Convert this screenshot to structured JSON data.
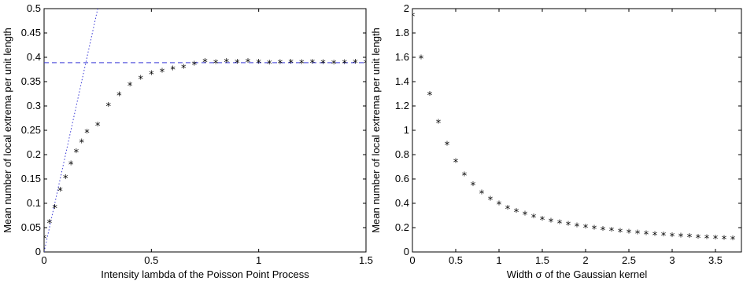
{
  "chart_data": [
    {
      "type": "scatter",
      "xlabel": "Intensity lambda of the Poisson Point Process",
      "ylabel": "Mean number of local extrema per unit length",
      "xlim": [
        0,
        1.5
      ],
      "ylim": [
        0,
        0.5
      ],
      "xticks": [
        "0",
        "0.5",
        "1",
        "1.5"
      ],
      "xtick_values": [
        0,
        0.5,
        1,
        1.5
      ],
      "yticks": [
        "0",
        "0.05",
        "0.1",
        "0.15",
        "0.2",
        "0.25",
        "0.3",
        "0.35",
        "0.4",
        "0.45",
        "0.5"
      ],
      "ytick_values": [
        0,
        0.05,
        0.1,
        0.15,
        0.2,
        0.25,
        0.3,
        0.35,
        0.4,
        0.45,
        0.5
      ],
      "marker": "*",
      "marker_color": "#000000",
      "points": {
        "x": [
          0,
          0.025,
          0.05,
          0.075,
          0.1,
          0.125,
          0.15,
          0.175,
          0.2,
          0.25,
          0.3,
          0.35,
          0.4,
          0.45,
          0.5,
          0.55,
          0.6,
          0.65,
          0.7,
          0.75,
          0.8,
          0.85,
          0.9,
          0.95,
          1.0,
          1.05,
          1.1,
          1.15,
          1.2,
          1.25,
          1.3,
          1.35,
          1.4,
          1.45,
          1.5
        ],
        "y": [
          0.028,
          0.06,
          0.09,
          0.126,
          0.152,
          0.18,
          0.205,
          0.225,
          0.245,
          0.26,
          0.3,
          0.322,
          0.342,
          0.356,
          0.365,
          0.37,
          0.375,
          0.378,
          0.385,
          0.39,
          0.388,
          0.39,
          0.389,
          0.39,
          0.389,
          0.387,
          0.388,
          0.389,
          0.388,
          0.389,
          0.388,
          0.387,
          0.388,
          0.389,
          0.388
        ]
      },
      "reference_lines": [
        {
          "style": "dashed",
          "color": "#3b3bd6",
          "x": [
            0,
            1.5
          ],
          "y": [
            0.389,
            0.389
          ]
        },
        {
          "style": "dotted",
          "color": "#3b3bd6",
          "x": [
            0,
            0.25
          ],
          "y": [
            0,
            0.5
          ]
        }
      ]
    },
    {
      "type": "scatter",
      "xlabel": "Width σ of the Gaussian kernel",
      "ylabel": "Mean number of local extrema per unit length",
      "xlim": [
        0,
        3.8
      ],
      "ylim": [
        0,
        2
      ],
      "xticks": [
        "0",
        "0.5",
        "1",
        "1.5",
        "2",
        "2.5",
        "3",
        "3.5"
      ],
      "xtick_values": [
        0,
        0.5,
        1,
        1.5,
        2,
        2.5,
        3,
        3.5
      ],
      "yticks": [
        "0",
        "0.2",
        "0.4",
        "0.6",
        "0.8",
        "1",
        "1.2",
        "1.4",
        "1.6",
        "1.8",
        "2"
      ],
      "ytick_values": [
        0,
        0.2,
        0.4,
        0.6,
        0.8,
        1.0,
        1.2,
        1.4,
        1.6,
        1.8,
        2.0
      ],
      "marker": "*",
      "marker_color": "#000000",
      "points": {
        "x": [
          0.0,
          0.1,
          0.2,
          0.3,
          0.4,
          0.5,
          0.6,
          0.7,
          0.8,
          0.9,
          1.0,
          1.1,
          1.2,
          1.3,
          1.4,
          1.5,
          1.6,
          1.7,
          1.8,
          1.9,
          2.0,
          2.1,
          2.2,
          2.3,
          2.4,
          2.5,
          2.6,
          2.7,
          2.8,
          2.9,
          3.0,
          3.1,
          3.2,
          3.3,
          3.4,
          3.5,
          3.6,
          3.7
        ],
        "y": [
          1.94,
          1.59,
          1.29,
          1.06,
          0.88,
          0.74,
          0.63,
          0.55,
          0.48,
          0.43,
          0.39,
          0.355,
          0.33,
          0.305,
          0.285,
          0.265,
          0.248,
          0.235,
          0.222,
          0.21,
          0.2,
          0.19,
          0.182,
          0.174,
          0.166,
          0.159,
          0.152,
          0.146,
          0.14,
          0.135,
          0.13,
          0.125,
          0.121,
          0.117,
          0.113,
          0.109,
          0.106,
          0.103
        ]
      }
    }
  ]
}
